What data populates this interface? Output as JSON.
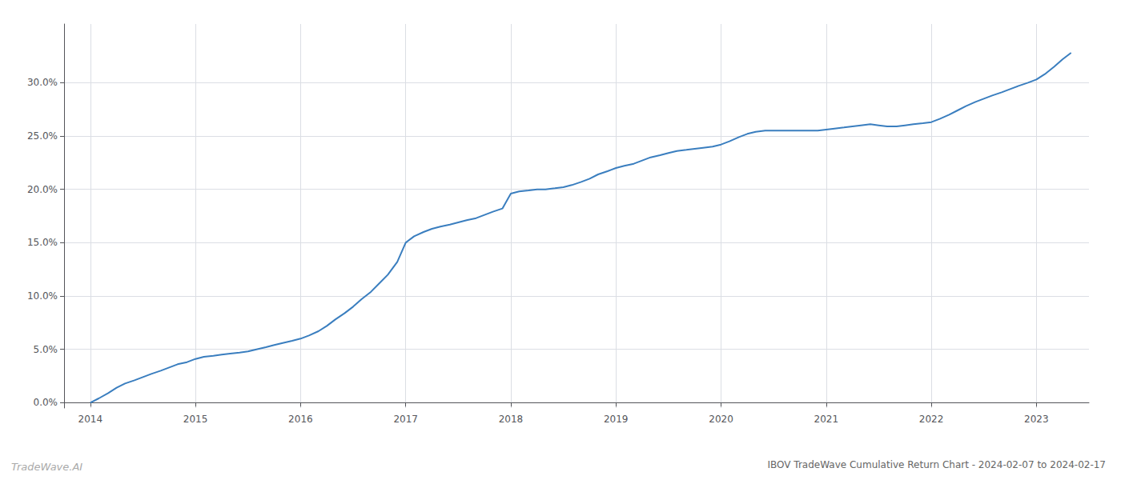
{
  "chart_data": {
    "type": "line",
    "title": "IBOV TradeWave Cumulative Return Chart - 2024-02-07 to 2024-02-17",
    "annotations": [
      "TradeWave.AI"
    ],
    "color": "#3a7ebf",
    "grid": true,
    "xlim": [
      2013.75,
      2023.5
    ],
    "ylim": [
      -0.005,
      0.355
    ],
    "xticks": [
      2014,
      2015,
      2016,
      2017,
      2018,
      2019,
      2020,
      2021,
      2022,
      2023
    ],
    "yticks": [
      {
        "value": 0.0,
        "label": "0.0%"
      },
      {
        "value": 0.05,
        "label": "5.0%"
      },
      {
        "value": 0.1,
        "label": "10.0%"
      },
      {
        "value": 0.15,
        "label": "15.0%"
      },
      {
        "value": 0.2,
        "label": "20.0%"
      },
      {
        "value": 0.25,
        "label": "25.0%"
      },
      {
        "value": 0.3,
        "label": "30.0%"
      }
    ],
    "x": [
      2014.0,
      2014.08,
      2014.17,
      2014.25,
      2014.33,
      2014.42,
      2014.5,
      2014.58,
      2014.67,
      2014.75,
      2014.83,
      2014.92,
      2015.0,
      2015.08,
      2015.17,
      2015.25,
      2015.33,
      2015.42,
      2015.5,
      2015.58,
      2015.67,
      2015.75,
      2015.83,
      2015.92,
      2016.0,
      2016.08,
      2016.17,
      2016.25,
      2016.33,
      2016.42,
      2016.5,
      2016.58,
      2016.67,
      2016.75,
      2016.83,
      2016.92,
      2017.0,
      2017.08,
      2017.17,
      2017.25,
      2017.33,
      2017.42,
      2017.5,
      2017.58,
      2017.67,
      2017.75,
      2017.83,
      2017.92,
      2018.0,
      2018.08,
      2018.17,
      2018.25,
      2018.33,
      2018.42,
      2018.5,
      2018.58,
      2018.67,
      2018.75,
      2018.83,
      2018.92,
      2019.0,
      2019.08,
      2019.17,
      2019.25,
      2019.33,
      2019.42,
      2019.5,
      2019.58,
      2019.67,
      2019.75,
      2019.83,
      2019.92,
      2020.0,
      2020.08,
      2020.17,
      2020.25,
      2020.33,
      2020.42,
      2020.5,
      2020.58,
      2020.67,
      2020.75,
      2020.83,
      2020.92,
      2021.0,
      2021.08,
      2021.17,
      2021.25,
      2021.33,
      2021.42,
      2021.5,
      2021.58,
      2021.67,
      2021.75,
      2021.83,
      2021.92,
      2022.0,
      2022.08,
      2022.17,
      2022.25,
      2022.33,
      2022.42,
      2022.5,
      2022.58,
      2022.67,
      2022.75,
      2022.83,
      2022.92,
      2023.0,
      2023.08,
      2023.17,
      2023.25,
      2023.33
    ],
    "values": [
      0.0,
      0.004,
      0.009,
      0.014,
      0.018,
      0.021,
      0.024,
      0.027,
      0.03,
      0.033,
      0.036,
      0.038,
      0.041,
      0.043,
      0.044,
      0.045,
      0.046,
      0.047,
      0.048,
      0.05,
      0.052,
      0.054,
      0.056,
      0.058,
      0.06,
      0.063,
      0.067,
      0.072,
      0.078,
      0.084,
      0.09,
      0.097,
      0.104,
      0.112,
      0.12,
      0.132,
      0.15,
      0.156,
      0.16,
      0.163,
      0.165,
      0.167,
      0.169,
      0.171,
      0.173,
      0.176,
      0.179,
      0.182,
      0.196,
      0.198,
      0.199,
      0.2,
      0.2,
      0.201,
      0.202,
      0.204,
      0.207,
      0.21,
      0.214,
      0.217,
      0.22,
      0.222,
      0.224,
      0.227,
      0.23,
      0.232,
      0.234,
      0.236,
      0.237,
      0.238,
      0.239,
      0.24,
      0.242,
      0.245,
      0.249,
      0.252,
      0.254,
      0.255,
      0.255,
      0.255,
      0.255,
      0.255,
      0.255,
      0.255,
      0.256,
      0.257,
      0.258,
      0.259,
      0.26,
      0.261,
      0.26,
      0.259,
      0.259,
      0.26,
      0.261,
      0.262,
      0.263,
      0.266,
      0.27,
      0.274,
      0.278,
      0.282,
      0.285,
      0.288,
      0.291,
      0.294,
      0.297,
      0.3,
      0.303,
      0.308,
      0.315,
      0.322,
      0.328
    ]
  }
}
